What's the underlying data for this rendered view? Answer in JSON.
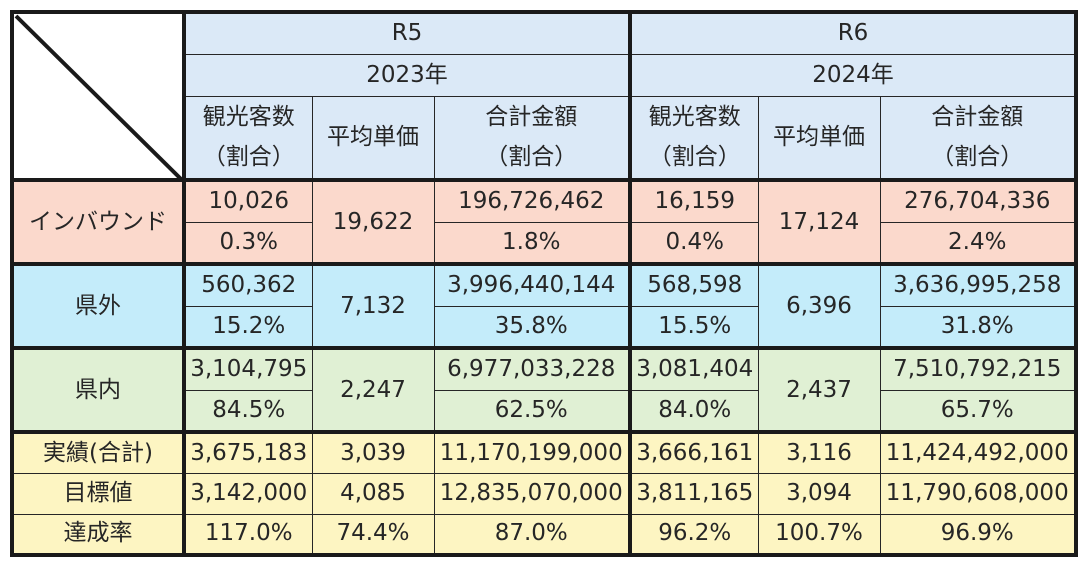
{
  "header": {
    "r5": {
      "era": "R5",
      "year": "2023年",
      "col1": [
        "観光客数",
        "（割合）"
      ],
      "col2": "平均単価",
      "col3": [
        "合計金額",
        "（割合）"
      ]
    },
    "r6": {
      "era": "R6",
      "year": "2024年",
      "col1": [
        "観光客数",
        "（割合）"
      ],
      "col2": "平均単価",
      "col3": [
        "合計金額",
        "（割合）"
      ]
    }
  },
  "categories": [
    {
      "label": "インバウンド",
      "r5": {
        "visitors": "10,026",
        "ratio": "0.3%",
        "avg": "19,622",
        "total": "196,726,462",
        "total_ratio": "1.8%"
      },
      "r6": {
        "visitors": "16,159",
        "ratio": "0.4%",
        "avg": "17,124",
        "total": "276,704,336",
        "total_ratio": "2.4%"
      }
    },
    {
      "label": "県外",
      "r5": {
        "visitors": "560,362",
        "ratio": "15.2%",
        "avg": "7,132",
        "total": "3,996,440,144",
        "total_ratio": "35.8%"
      },
      "r6": {
        "visitors": "568,598",
        "ratio": "15.5%",
        "avg": "6,396",
        "total": "3,636,995,258",
        "total_ratio": "31.8%"
      }
    },
    {
      "label": "県内",
      "r5": {
        "visitors": "3,104,795",
        "ratio": "84.5%",
        "avg": "2,247",
        "total": "6,977,033,228",
        "total_ratio": "62.5%"
      },
      "r6": {
        "visitors": "3,081,404",
        "ratio": "84.0%",
        "avg": "2,437",
        "total": "7,510,792,215",
        "total_ratio": "65.7%"
      }
    }
  ],
  "summary": [
    {
      "label": "実績(合計)",
      "r5": {
        "visitors": "3,675,183",
        "avg": "3,039",
        "total": "11,170,199,000"
      },
      "r6": {
        "visitors": "3,666,161",
        "avg": "3,116",
        "total": "11,424,492,000"
      }
    },
    {
      "label": "目標値",
      "r5": {
        "visitors": "3,142,000",
        "avg": "4,085",
        "total": "12,835,070,000"
      },
      "r6": {
        "visitors": "3,811,165",
        "avg": "3,094",
        "total": "11,790,608,000"
      }
    },
    {
      "label": "達成率",
      "r5": {
        "visitors": "117.0%",
        "avg": "74.4%",
        "total": "87.0%"
      },
      "r6": {
        "visitors": "96.2%",
        "avg": "100.7%",
        "total": "96.9%"
      }
    }
  ],
  "colors": {
    "header": "#dbe9f7",
    "inbound": "#fbd9cc",
    "outside": "#c4ecfa",
    "inside": "#e0f0d4",
    "totals": "#fdf5c2"
  }
}
